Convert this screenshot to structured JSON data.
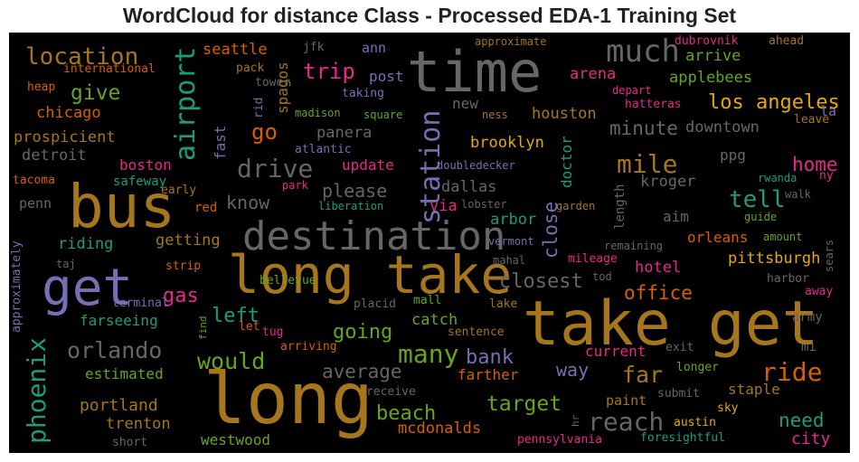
{
  "title": "WordCloud for distance Class - Processed EDA-1 Training Set",
  "colors": {
    "background": "#000000",
    "palette": {
      "gold": "#a6761d",
      "gray": "#666666",
      "green": "#66a61e",
      "teal": "#1b9e77",
      "purple": "#7570b3",
      "pink": "#e7298a",
      "orange": "#d95f02",
      "yellow": "#e6ab02"
    }
  },
  "words": [
    {
      "text": "long take",
      "color": "gold"
    },
    {
      "text": "take get",
      "color": "gold"
    },
    {
      "text": "long",
      "color": "gold"
    },
    {
      "text": "bus",
      "color": "gold"
    },
    {
      "text": "time",
      "color": "gray"
    },
    {
      "text": "destination",
      "color": "gray"
    },
    {
      "text": "get",
      "color": "purple"
    },
    {
      "text": "much",
      "color": "gray"
    },
    {
      "text": "location",
      "color": "gold"
    },
    {
      "text": "airport",
      "color": "teal"
    },
    {
      "text": "station",
      "color": "purple"
    },
    {
      "text": "mile",
      "color": "gold"
    },
    {
      "text": "drive",
      "color": "gray"
    },
    {
      "text": "phoenix",
      "color": "teal"
    },
    {
      "text": "ride",
      "color": "orange"
    },
    {
      "text": "reach",
      "color": "gray"
    },
    {
      "text": "many",
      "color": "green"
    },
    {
      "text": "los angeles",
      "color": "yellow"
    },
    {
      "text": "tell",
      "color": "teal"
    },
    {
      "text": "orlando",
      "color": "gray"
    },
    {
      "text": "would",
      "color": "green"
    },
    {
      "text": "target",
      "color": "green"
    },
    {
      "text": "trip",
      "color": "pink"
    },
    {
      "text": "give",
      "color": "green"
    },
    {
      "text": "home",
      "color": "pink"
    },
    {
      "text": "need",
      "color": "teal"
    },
    {
      "text": "far",
      "color": "gold"
    },
    {
      "text": "office",
      "color": "orange"
    },
    {
      "text": "closest",
      "color": "gray"
    },
    {
      "text": "bank",
      "color": "purple"
    },
    {
      "text": "going",
      "color": "green"
    },
    {
      "text": "go",
      "color": "orange"
    },
    {
      "text": "left",
      "color": "teal"
    },
    {
      "text": "gas",
      "color": "pink"
    },
    {
      "text": "beach",
      "color": "green"
    },
    {
      "text": "average",
      "color": "gray"
    },
    {
      "text": "minute",
      "color": "gray"
    },
    {
      "text": "close",
      "color": "purple"
    },
    {
      "text": "please",
      "color": "gray"
    },
    {
      "text": "know",
      "color": "gray"
    },
    {
      "text": "dallas",
      "color": "gray"
    },
    {
      "text": "houston",
      "color": "gold"
    },
    {
      "text": "brooklyn",
      "color": "yellow"
    },
    {
      "text": "arena",
      "color": "pink"
    },
    {
      "text": "arrive",
      "color": "green"
    },
    {
      "text": "applebees",
      "color": "green"
    },
    {
      "text": "downtown",
      "color": "gray"
    },
    {
      "text": "pittsburgh",
      "color": "yellow"
    },
    {
      "text": "orleans",
      "color": "orange"
    },
    {
      "text": "kroger",
      "color": "gray"
    },
    {
      "text": "hotel",
      "color": "pink"
    },
    {
      "text": "city",
      "color": "pink"
    },
    {
      "text": "way",
      "color": "purple"
    },
    {
      "text": "portland",
      "color": "gold"
    },
    {
      "text": "trenton",
      "color": "gold"
    },
    {
      "text": "westwood",
      "color": "green"
    },
    {
      "text": "mcdonalds",
      "color": "orange"
    },
    {
      "text": "catch",
      "color": "green"
    },
    {
      "text": "farseeing",
      "color": "teal"
    },
    {
      "text": "estimated",
      "color": "green"
    },
    {
      "text": "riding",
      "color": "teal"
    },
    {
      "text": "getting",
      "color": "gold"
    },
    {
      "text": "chicago",
      "color": "orange"
    },
    {
      "text": "prospicient",
      "color": "gold"
    },
    {
      "text": "detroit",
      "color": "gray"
    },
    {
      "text": "boston",
      "color": "pink"
    },
    {
      "text": "seattle",
      "color": "orange"
    },
    {
      "text": "panera",
      "color": "gray"
    },
    {
      "text": "update",
      "color": "pink"
    },
    {
      "text": "new",
      "color": "gray"
    },
    {
      "text": "post",
      "color": "purple"
    },
    {
      "text": "spagos",
      "color": "gold"
    },
    {
      "text": "fast",
      "color": "purple"
    },
    {
      "text": "via",
      "color": "pink"
    },
    {
      "text": "arbor",
      "color": "teal"
    },
    {
      "text": "doctor",
      "color": "teal"
    },
    {
      "text": "length",
      "color": "gray"
    },
    {
      "text": "aim",
      "color": "gray"
    },
    {
      "text": "farther",
      "color": "orange"
    },
    {
      "text": "current",
      "color": "pink"
    },
    {
      "text": "staple",
      "color": "gold"
    },
    {
      "text": "paint",
      "color": "gold"
    },
    {
      "text": "ann",
      "color": "purple"
    },
    {
      "text": "ppg",
      "color": "gray"
    },
    {
      "text": "la",
      "color": "purple"
    },
    {
      "text": "safeway",
      "color": "teal"
    },
    {
      "text": "penn",
      "color": "gray"
    },
    {
      "text": "tacoma",
      "color": "orange"
    },
    {
      "text": "early",
      "color": "gold"
    },
    {
      "text": "red",
      "color": "orange"
    },
    {
      "text": "pack",
      "color": "gold"
    },
    {
      "text": "tower",
      "color": "gray"
    },
    {
      "text": "jfk",
      "color": "gray"
    },
    {
      "text": "rid",
      "color": "purple"
    },
    {
      "text": "madison",
      "color": "green"
    },
    {
      "text": "atlantic",
      "color": "purple"
    },
    {
      "text": "taking",
      "color": "purple"
    },
    {
      "text": "square",
      "color": "green"
    },
    {
      "text": "ness",
      "color": "gold"
    },
    {
      "text": "doubledecker",
      "color": "purple"
    },
    {
      "text": "park",
      "color": "pink"
    },
    {
      "text": "liberation",
      "color": "teal"
    },
    {
      "text": "lobster",
      "color": "gray"
    },
    {
      "text": "garden",
      "color": "gold"
    },
    {
      "text": "guide",
      "color": "green"
    },
    {
      "text": "rwanda",
      "color": "teal"
    },
    {
      "text": "walk",
      "color": "gray"
    },
    {
      "text": "ny",
      "color": "pink"
    },
    {
      "text": "sears",
      "color": "gray"
    },
    {
      "text": "amount",
      "color": "green"
    },
    {
      "text": "remaining",
      "color": "gray"
    },
    {
      "text": "vermont",
      "color": "purple"
    },
    {
      "text": "mahal",
      "color": "gray"
    },
    {
      "text": "mileage",
      "color": "pink"
    },
    {
      "text": "tod",
      "color": "gray"
    },
    {
      "text": "harbor",
      "color": "gray"
    },
    {
      "text": "away",
      "color": "pink"
    },
    {
      "text": "army",
      "color": "gray"
    },
    {
      "text": "mi",
      "color": "gray"
    },
    {
      "text": "exit",
      "color": "gray"
    },
    {
      "text": "longer",
      "color": "green"
    },
    {
      "text": "submit",
      "color": "gray"
    },
    {
      "text": "sky",
      "color": "yellow"
    },
    {
      "text": "austin",
      "color": "yellow"
    },
    {
      "text": "foresightful",
      "color": "teal"
    },
    {
      "text": "pennsylvania",
      "color": "pink"
    },
    {
      "text": "hr",
      "color": "gray"
    },
    {
      "text": "receive",
      "color": "gray"
    },
    {
      "text": "short",
      "color": "gray"
    },
    {
      "text": "sentence",
      "color": "gold"
    },
    {
      "text": "lake",
      "color": "gold"
    },
    {
      "text": "mall",
      "color": "green"
    },
    {
      "text": "placid",
      "color": "gray"
    },
    {
      "text": "tug",
      "color": "pink"
    },
    {
      "text": "let",
      "color": "orange"
    },
    {
      "text": "find",
      "color": "green"
    },
    {
      "text": "arriving",
      "color": "orange"
    },
    {
      "text": "terminal",
      "color": "purple"
    },
    {
      "text": "bellevue",
      "color": "green"
    },
    {
      "text": "strip",
      "color": "orange"
    },
    {
      "text": "taj",
      "color": "gray"
    },
    {
      "text": "approximately",
      "color": "purple"
    },
    {
      "text": "approximate",
      "color": "gold"
    },
    {
      "text": "dubrovnik",
      "color": "pink"
    },
    {
      "text": "ahead",
      "color": "gold"
    },
    {
      "text": "depart",
      "color": "pink"
    },
    {
      "text": "hatteras",
      "color": "pink"
    },
    {
      "text": "leave",
      "color": "gold"
    },
    {
      "text": "international",
      "color": "orange"
    },
    {
      "text": "heap",
      "color": "orange"
    }
  ]
}
